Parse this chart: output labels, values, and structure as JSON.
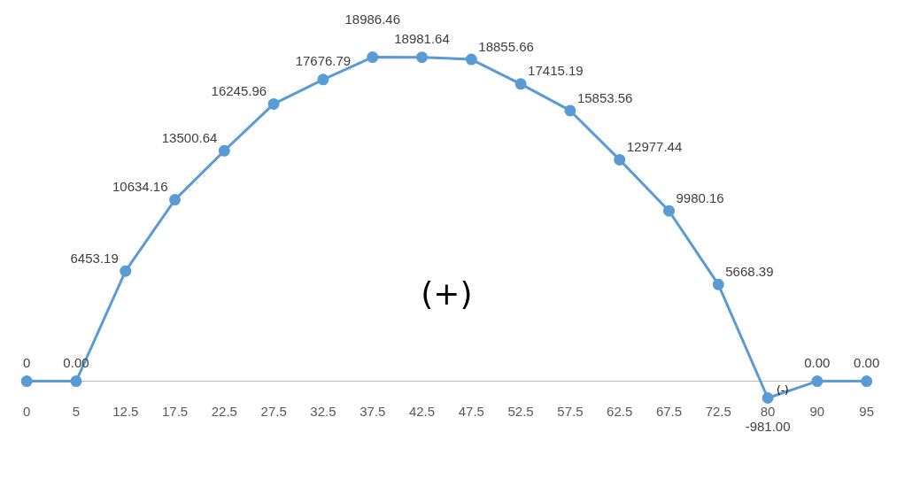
{
  "chart_data": {
    "type": "line",
    "categories": [
      "0",
      "5",
      "12.5",
      "17.5",
      "22.5",
      "27.5",
      "32.5",
      "37.5",
      "42.5",
      "47.5",
      "52.5",
      "57.5",
      "62.5",
      "67.5",
      "72.5",
      "80",
      "90",
      "95"
    ],
    "series": [
      {
        "color": "#5b9bd5",
        "values": [
          0,
          0,
          6453.19,
          10634.16,
          13500.64,
          16245.96,
          17676.79,
          18986.46,
          18981.64,
          18855.66,
          17415.19,
          15853.56,
          12977.44,
          9980.16,
          5668.39,
          -981,
          0,
          0
        ],
        "value_labels": [
          "0",
          "0.00",
          "6453.19",
          "10634.16",
          "13500.64",
          "16245.96",
          "17676.79",
          "18986.46",
          "18981.64",
          "18855.66",
          "17415.19",
          "15853.56",
          "12977.44",
          "9980.16",
          "5668.39",
          "-981.00",
          "0.00",
          "0.00"
        ]
      }
    ],
    "annotations": [
      "(+)",
      {
        "text": "(-)",
        "x": "80",
        "y": -981
      }
    ],
    "marker": "circle",
    "line_style": "solid",
    "legend": false,
    "grid": false
  }
}
